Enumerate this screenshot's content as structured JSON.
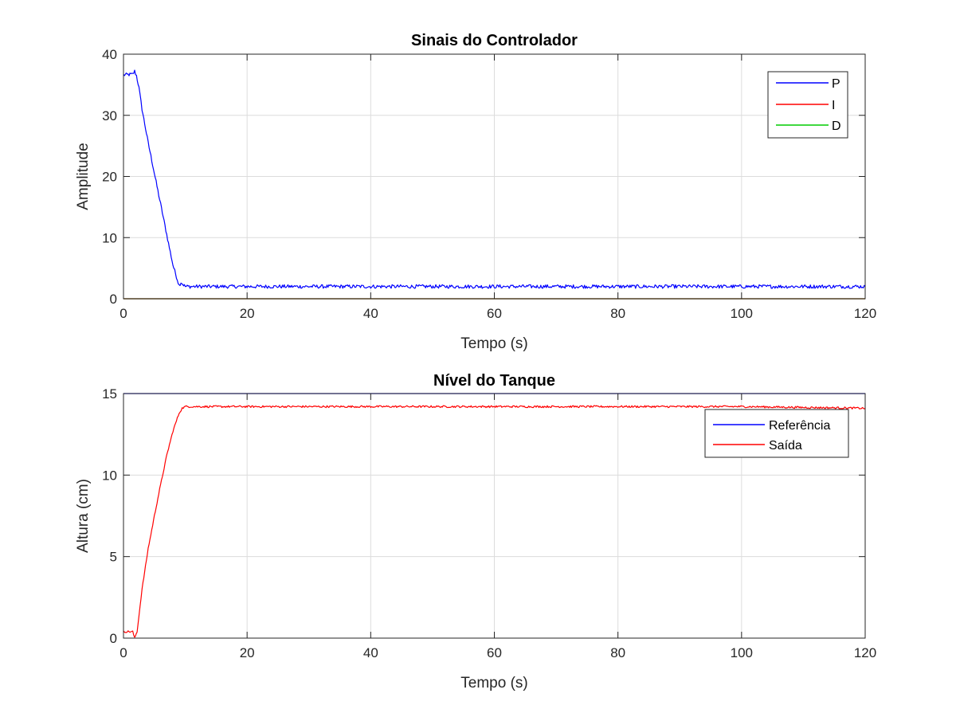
{
  "chart_data": [
    {
      "type": "line",
      "title": "Sinais do Controlador",
      "xlabel": "Tempo (s)",
      "ylabel": "Amplitude",
      "xlim": [
        0,
        120
      ],
      "ylim": [
        0,
        40
      ],
      "xticks": [
        0,
        20,
        40,
        60,
        80,
        100,
        120
      ],
      "yticks": [
        0,
        10,
        20,
        30,
        40
      ],
      "grid": true,
      "legend_position": "top-right",
      "series": [
        {
          "name": "P",
          "color": "#0000ff",
          "noise": 0.3,
          "x": [
            0,
            1.5,
            1.8,
            2.1,
            2.5,
            3,
            4,
            5,
            6,
            7,
            8,
            9,
            9.3,
            10,
            12,
            20,
            40,
            60,
            80,
            100,
            120
          ],
          "y": [
            36.6,
            36.7,
            37.2,
            36.5,
            34.5,
            31,
            25.5,
            20.5,
            15.5,
            10.5,
            5.5,
            2.2,
            2.7,
            2.0,
            2.0,
            2.0,
            2.0,
            2.0,
            2.0,
            2.0,
            2.0
          ]
        },
        {
          "name": "I",
          "color": "#ff0000",
          "noise": 0,
          "x": [
            0,
            120
          ],
          "y": [
            0,
            0
          ]
        },
        {
          "name": "D",
          "color": "#00cc00",
          "noise": 0,
          "x": [
            0,
            120
          ],
          "y": [
            0,
            0
          ]
        }
      ]
    },
    {
      "type": "line",
      "title": "Nível do Tanque",
      "xlabel": "Tempo (s)",
      "ylabel": "Altura (cm)",
      "xlim": [
        0,
        120
      ],
      "ylim": [
        0,
        15
      ],
      "xticks": [
        0,
        20,
        40,
        60,
        80,
        100,
        120
      ],
      "yticks": [
        0,
        5,
        10,
        15
      ],
      "grid": true,
      "legend_position": "top-right",
      "series": [
        {
          "name": "Referência",
          "color": "#0000ff",
          "noise": 0,
          "x": [
            0,
            120
          ],
          "y": [
            15,
            15
          ]
        },
        {
          "name": "Saída",
          "color": "#ff0000",
          "noise": 0.06,
          "x": [
            0,
            1.5,
            1.8,
            2.2,
            3,
            4,
            5,
            6,
            7,
            8,
            9,
            9.5,
            10,
            12,
            20,
            40,
            60,
            80,
            100,
            120
          ],
          "y": [
            0.4,
            0.4,
            0.0,
            0.4,
            3.0,
            5.5,
            7.5,
            9.4,
            11.2,
            12.7,
            13.8,
            14.1,
            14.2,
            14.2,
            14.2,
            14.2,
            14.2,
            14.2,
            14.2,
            14.1
          ]
        }
      ]
    }
  ]
}
